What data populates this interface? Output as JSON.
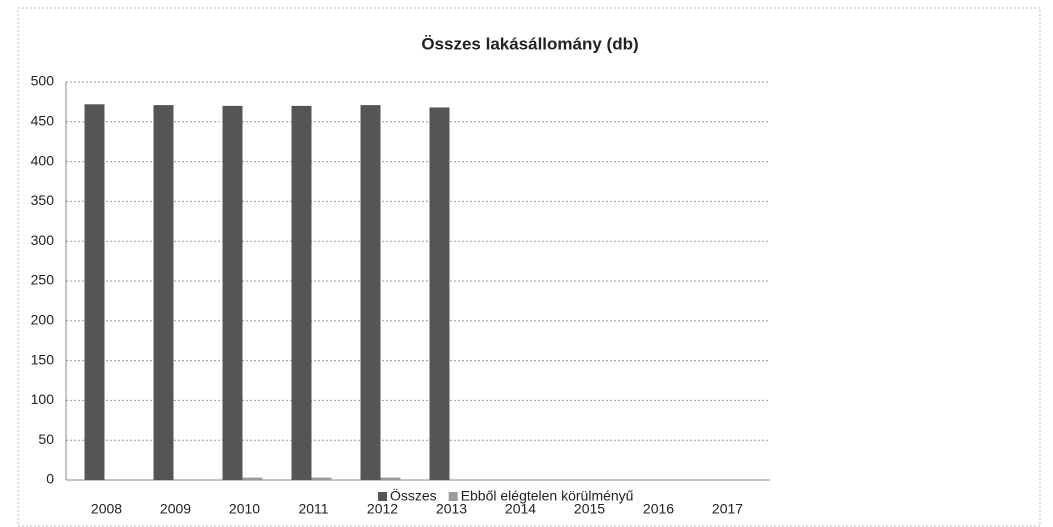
{
  "chart_data": {
    "type": "bar",
    "title": "Összes lakásállomány (db)",
    "categories": [
      "2008",
      "2009",
      "2010",
      "2011",
      "2012",
      "2013",
      "2014",
      "2015",
      "2016",
      "2017"
    ],
    "series": [
      {
        "name": "Összes",
        "color": "#555555",
        "values": [
          472,
          471,
          470,
          470,
          471,
          468,
          null,
          null,
          null,
          null
        ]
      },
      {
        "name": "Ebből elégtelen körülményű",
        "color": "#9a9a9a",
        "values": [
          0,
          0,
          3,
          3,
          3,
          0,
          null,
          null,
          null,
          null
        ]
      }
    ],
    "ylim": [
      0,
      500
    ],
    "yticks": [
      0,
      50,
      100,
      150,
      200,
      250,
      300,
      350,
      400,
      450,
      500
    ],
    "grid": true,
    "legend": "bottom"
  }
}
